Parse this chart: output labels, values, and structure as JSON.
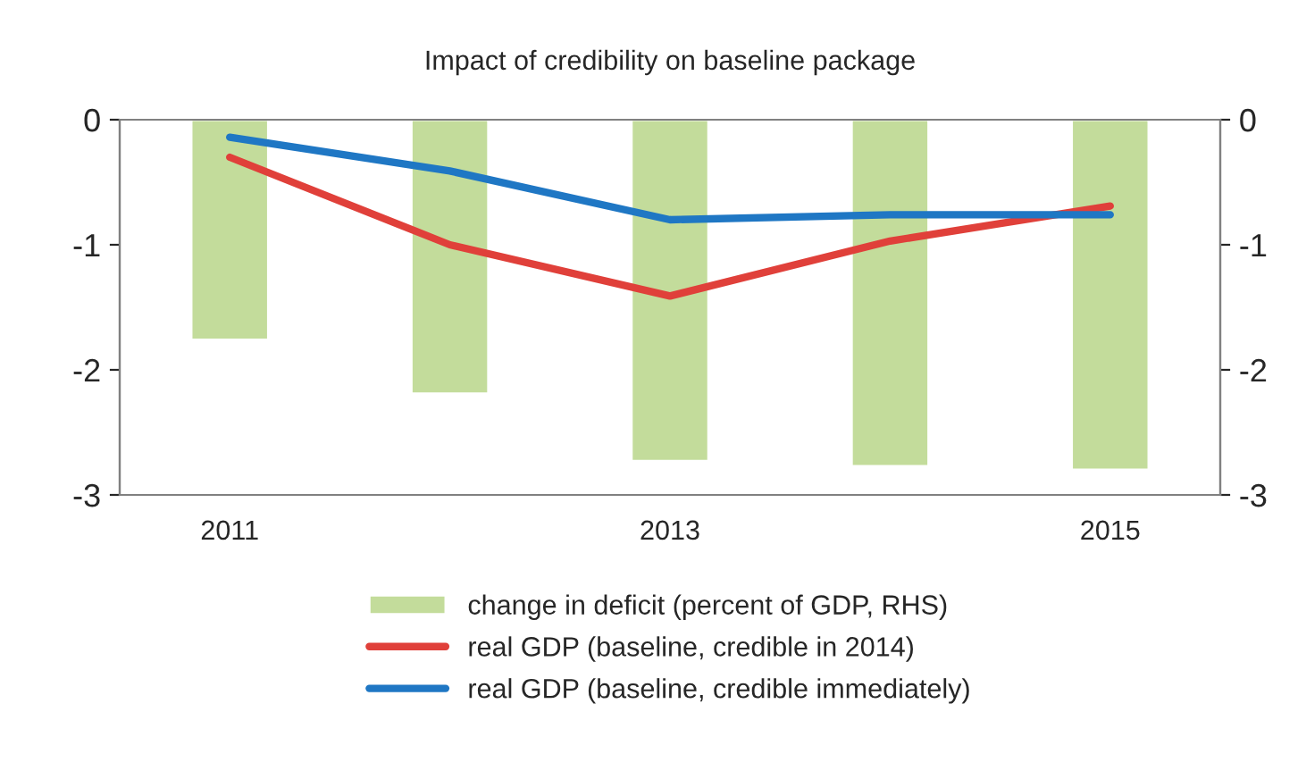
{
  "chart_data": {
    "type": "bar",
    "title": "Impact of credibility on baseline package",
    "categories": [
      "2011",
      null,
      "2013",
      null,
      "2015"
    ],
    "series": [
      {
        "name": "change in deficit (percent of GDP, RHS)",
        "axis": "y2",
        "color": "#c3dc9b",
        "values": [
          -1.76,
          -2.19,
          -2.73,
          -2.77,
          -2.8
        ]
      },
      {
        "name": "real GDP (baseline, credible in 2014)",
        "type": "line",
        "color": "#e0403a",
        "values": [
          -0.3,
          -1.0,
          -1.41,
          -0.97,
          -0.69
        ]
      },
      {
        "name": "real GDP (baseline, credible immediately)",
        "type": "line",
        "color": "#1f77c4",
        "values": [
          -0.14,
          -0.41,
          -0.8,
          -0.76,
          -0.76
        ]
      }
    ],
    "ylim": [
      -3,
      0
    ],
    "yticks": [
      -3,
      -2,
      -1,
      0
    ],
    "y2lim": [
      -3,
      0
    ],
    "y2ticks": [
      -3,
      -2,
      -1,
      0
    ],
    "grid": false,
    "legend": "bottom",
    "marker": "none",
    "line_style": "solid"
  }
}
